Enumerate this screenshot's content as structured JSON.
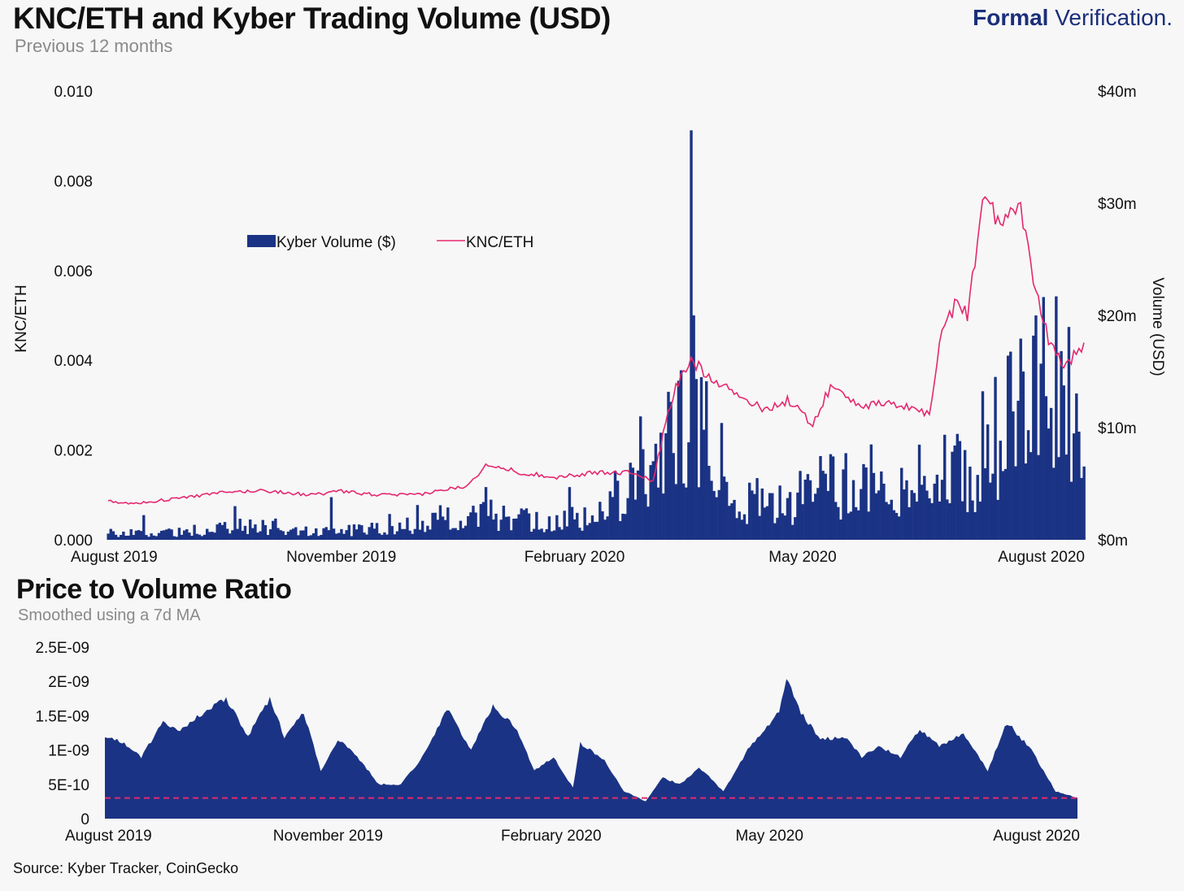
{
  "header": {
    "title": "KNC/ETH and Kyber Trading Volume (USD)",
    "subtitle": "Previous 12 months",
    "brand_bold": "Formal",
    "brand_light": " Verification."
  },
  "colors": {
    "volume": "#1b3384",
    "price": "#e5286e",
    "area": "#1b3384",
    "reference": "#e5286e"
  },
  "chart_data": [
    {
      "type": "bar+line",
      "title": "KNC/ETH and Kyber Trading Volume (USD)",
      "subtitle": "Previous 12 months",
      "ylabel": "KNC/ETH",
      "ylabel_right": "Volume (USD)",
      "ylim": [
        0,
        0.01
      ],
      "yticks": [
        "0.000",
        "0.002",
        "0.004",
        "0.006",
        "0.008",
        "0.010"
      ],
      "ylim_right": [
        0,
        40
      ],
      "yticks_right": [
        "$0m",
        "$10m",
        "$20m",
        "$30m",
        "$40m"
      ],
      "xticks": [
        "August 2019",
        "November 2019",
        "February 2020",
        "May 2020",
        "August 2020"
      ],
      "legend_placement": "upper-left",
      "series": [
        {
          "name": "Kyber Volume ($)",
          "type": "bar",
          "axis": "right",
          "unit": "$m",
          "anchors": [
            [
              "2019-08-01",
              0.6
            ],
            [
              "2019-09-01",
              0.7
            ],
            [
              "2019-09-20",
              1.4
            ],
            [
              "2019-10-15",
              0.9
            ],
            [
              "2019-11-01",
              0.8
            ],
            [
              "2019-11-20",
              1.2
            ],
            [
              "2019-12-10",
              1.8
            ],
            [
              "2019-12-31",
              2.1
            ],
            [
              "2020-01-20",
              1.5
            ],
            [
              "2020-02-05",
              2.0
            ],
            [
              "2020-02-20",
              4.0
            ],
            [
              "2020-03-05",
              6.5
            ],
            [
              "2020-03-15",
              9.0
            ],
            [
              "2020-03-25",
              7.5
            ],
            [
              "2020-04-10",
              3.2
            ],
            [
              "2020-04-25",
              3.2
            ],
            [
              "2020-05-10",
              4.5
            ],
            [
              "2020-05-25",
              4.5
            ],
            [
              "2020-06-10",
              5.2
            ],
            [
              "2020-06-25",
              6.2
            ],
            [
              "2020-07-10",
              7.0
            ],
            [
              "2020-07-20",
              10.0
            ],
            [
              "2020-07-30",
              12.0
            ],
            [
              "2020-08-07",
              13.5
            ]
          ],
          "spikes": [
            [
              "2019-08-15",
              2.2
            ],
            [
              "2019-09-20",
              3.0
            ],
            [
              "2019-10-28",
              3.8
            ],
            [
              "2019-11-20",
              2.3
            ],
            [
              "2019-12-01",
              3.1
            ],
            [
              "2019-12-28",
              4.7
            ],
            [
              "2020-01-30",
              4.7
            ],
            [
              "2020-02-27",
              11.0
            ],
            [
              "2020-03-08",
              9.5
            ],
            [
              "2020-03-10",
              12.3
            ],
            [
              "2020-03-18",
              36.5
            ],
            [
              "2020-03-19",
              20.0
            ],
            [
              "2020-03-22",
              14.5
            ],
            [
              "2020-04-13",
              5.5
            ],
            [
              "2020-05-28",
              8.5
            ],
            [
              "2020-06-11",
              5.3
            ],
            [
              "2020-07-02",
              8.8
            ],
            [
              "2020-07-27",
              15.0
            ],
            [
              "2020-07-31",
              18.2
            ],
            [
              "2020-08-01",
              20.0
            ],
            [
              "2020-08-03",
              15.7
            ],
            [
              "2020-08-05",
              12.8
            ]
          ]
        },
        {
          "name": "KNC/ETH",
          "type": "line",
          "axis": "left",
          "points": [
            [
              "2019-08-01",
              0.00088
            ],
            [
              "2019-08-10",
              0.0008
            ],
            [
              "2019-08-25",
              0.0009
            ],
            [
              "2019-09-15",
              0.00105
            ],
            [
              "2019-10-01",
              0.0011
            ],
            [
              "2019-10-20",
              0.001
            ],
            [
              "2019-11-01",
              0.00108
            ],
            [
              "2019-11-15",
              0.001
            ],
            [
              "2019-12-01",
              0.001
            ],
            [
              "2019-12-20",
              0.0012
            ],
            [
              "2019-12-29",
              0.0017
            ],
            [
              "2020-01-10",
              0.0015
            ],
            [
              "2020-01-25",
              0.0014
            ],
            [
              "2020-02-10",
              0.0015
            ],
            [
              "2020-02-25",
              0.0015
            ],
            [
              "2020-03-03",
              0.0013
            ],
            [
              "2020-03-08",
              0.0026
            ],
            [
              "2020-03-12",
              0.0034
            ],
            [
              "2020-03-18",
              0.004
            ],
            [
              "2020-03-22",
              0.0038
            ],
            [
              "2020-04-01",
              0.0034
            ],
            [
              "2020-04-15",
              0.0029
            ],
            [
              "2020-04-25",
              0.0031
            ],
            [
              "2020-05-05",
              0.0026
            ],
            [
              "2020-05-12",
              0.0034
            ],
            [
              "2020-05-25",
              0.003
            ],
            [
              "2020-06-10",
              0.003
            ],
            [
              "2020-06-20",
              0.0028
            ],
            [
              "2020-06-25",
              0.0047
            ],
            [
              "2020-07-01",
              0.0053
            ],
            [
              "2020-07-05",
              0.005
            ],
            [
              "2020-07-12",
              0.0079
            ],
            [
              "2020-07-18",
              0.0069
            ],
            [
              "2020-07-25",
              0.0076
            ],
            [
              "2020-08-01",
              0.0056
            ],
            [
              "2020-08-06",
              0.0045
            ],
            [
              "2020-08-12",
              0.0039
            ],
            [
              "2020-08-20",
              0.0043
            ]
          ]
        }
      ]
    },
    {
      "type": "area",
      "title": "Price to Volume Ratio",
      "subtitle": "Smoothed using a 7d MA",
      "ylim": [
        0,
        2.5e-09
      ],
      "yticks": [
        "0",
        "5E-10",
        "1E-09",
        "1.5E-09",
        "2E-09",
        "2.5E-09"
      ],
      "xticks": [
        "August 2019",
        "November 2019",
        "February 2020",
        "May 2020",
        "August 2020"
      ],
      "reference_line": 3e-10,
      "series": [
        {
          "name": "Price to Volume Ratio",
          "points": [
            [
              "2019-08-01",
              1.2e-09
            ],
            [
              "2019-08-09",
              1.1e-09
            ],
            [
              "2019-08-16",
              9e-10
            ],
            [
              "2019-08-25",
              1.4e-09
            ],
            [
              "2019-09-01",
              1.3e-09
            ],
            [
              "2019-09-09",
              1.5e-09
            ],
            [
              "2019-09-20",
              1.75e-09
            ],
            [
              "2019-09-29",
              1.2e-09
            ],
            [
              "2019-10-08",
              1.75e-09
            ],
            [
              "2019-10-14",
              1.2e-09
            ],
            [
              "2019-10-22",
              1.55e-09
            ],
            [
              "2019-10-29",
              7e-10
            ],
            [
              "2019-11-05",
              1.15e-09
            ],
            [
              "2019-11-12",
              9.5e-10
            ],
            [
              "2019-11-22",
              5e-10
            ],
            [
              "2019-12-01",
              5e-10
            ],
            [
              "2019-12-10",
              9e-10
            ],
            [
              "2019-12-20",
              1.6e-09
            ],
            [
              "2019-12-30",
              1e-09
            ],
            [
              "2020-01-08",
              1.65e-09
            ],
            [
              "2020-01-18",
              1.3e-09
            ],
            [
              "2020-01-25",
              7e-10
            ],
            [
              "2020-02-02",
              9e-10
            ],
            [
              "2020-02-10",
              4.5e-10
            ],
            [
              "2020-02-13",
              1.1e-09
            ],
            [
              "2020-02-23",
              8.5e-10
            ],
            [
              "2020-03-02",
              4e-10
            ],
            [
              "2020-03-11",
              2.5e-10
            ],
            [
              "2020-03-18",
              6e-10
            ],
            [
              "2020-03-25",
              5e-10
            ],
            [
              "2020-04-02",
              7.5e-10
            ],
            [
              "2020-04-12",
              4e-10
            ],
            [
              "2020-04-22",
              1e-09
            ],
            [
              "2020-05-05",
              1.55e-09
            ],
            [
              "2020-05-08",
              2.05e-09
            ],
            [
              "2020-05-14",
              1.55e-09
            ],
            [
              "2020-05-22",
              1.15e-09
            ],
            [
              "2020-06-01",
              1.2e-09
            ],
            [
              "2020-06-08",
              9e-10
            ],
            [
              "2020-06-15",
              1.05e-09
            ],
            [
              "2020-06-24",
              9e-10
            ],
            [
              "2020-07-02",
              1.3e-09
            ],
            [
              "2020-07-10",
              1.05e-09
            ],
            [
              "2020-07-20",
              1.25e-09
            ],
            [
              "2020-07-30",
              7e-10
            ],
            [
              "2020-08-07",
              1.4e-09
            ],
            [
              "2020-08-17",
              1e-09
            ],
            [
              "2020-08-27",
              4e-10
            ],
            [
              "2020-09-05",
              3e-10
            ]
          ]
        }
      ]
    }
  ],
  "footer": {
    "source": "Source: Kyber Tracker, CoinGecko"
  }
}
